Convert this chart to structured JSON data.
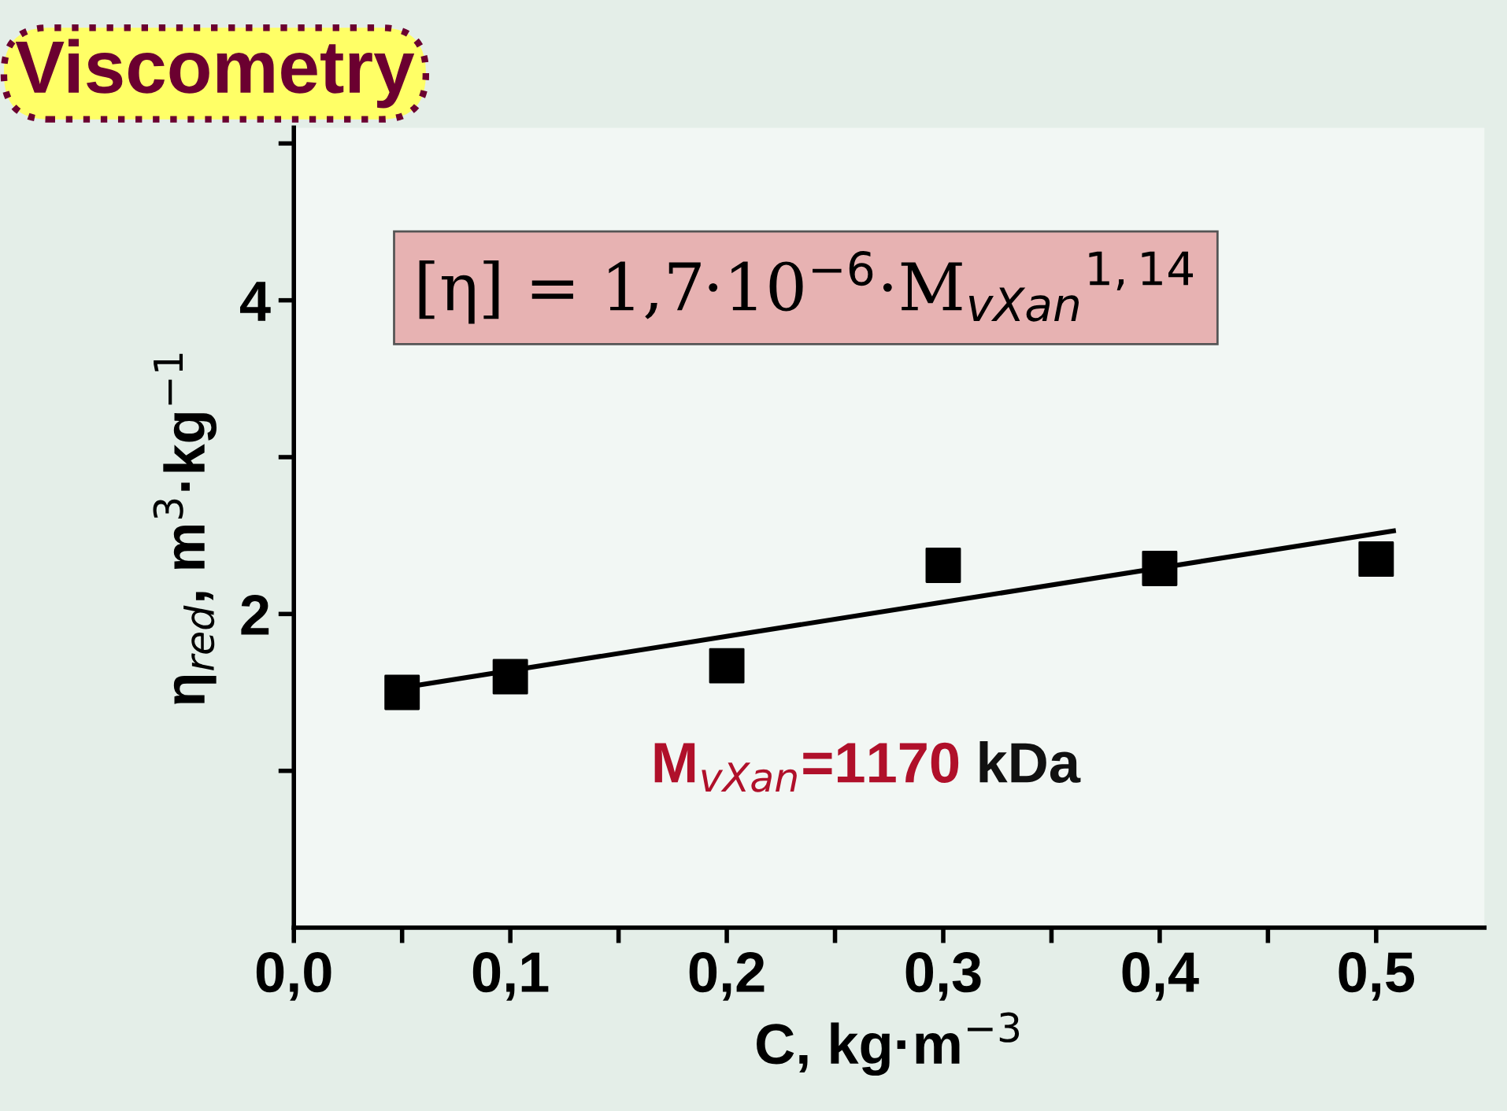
{
  "chart_data": {
    "type": "scatter",
    "title": "Viscometry",
    "xlabel": "C, kg·m$^{−3}$",
    "ylabel": "η$_{red}$, m$^{3}$·kg$^{−1}$",
    "series": [
      {
        "color": "#000000",
        "marker": "square",
        "x": [
          0.05,
          0.1,
          0.2,
          0.3,
          0.4,
          0.5
        ],
        "values": [
          1.5,
          1.6,
          1.67,
          2.31,
          2.29,
          2.35
        ]
      },
      {
        "type": "line",
        "color": "#000000",
        "marker": "none",
        "line_style": "solid",
        "x": [
          0.05,
          0.508
        ],
        "values": [
          1.53,
          2.53
        ]
      }
    ],
    "xlim": [
      0,
      0.55
    ],
    "ylim": [
      0,
      5.1
    ],
    "xticks": [
      {
        "value": 0,
        "label": "0,0"
      },
      {
        "value": 0.05,
        "label": null
      },
      {
        "value": 0.1,
        "label": "0,1"
      },
      {
        "value": 0.15,
        "label": null
      },
      {
        "value": 0.2,
        "label": "0,2"
      },
      {
        "value": 0.25,
        "label": null
      },
      {
        "value": 0.3,
        "label": "0,3"
      },
      {
        "value": 0.35,
        "label": null
      },
      {
        "value": 0.4,
        "label": "0,4"
      },
      {
        "value": 0.45,
        "label": null
      },
      {
        "value": 0.5,
        "label": "0,5"
      }
    ],
    "yticks": [
      {
        "value": 1,
        "label": null
      },
      2,
      {
        "value": 3,
        "label": null
      },
      4,
      {
        "value": 5,
        "label": null
      }
    ],
    "grid": false,
    "legend": false,
    "annotations": [
      "[η] = 1,7·10$^{−6}$·M$_{vXan}$$^{1,14}$",
      "M$_{vXan}$=1170",
      "kDa"
    ]
  }
}
